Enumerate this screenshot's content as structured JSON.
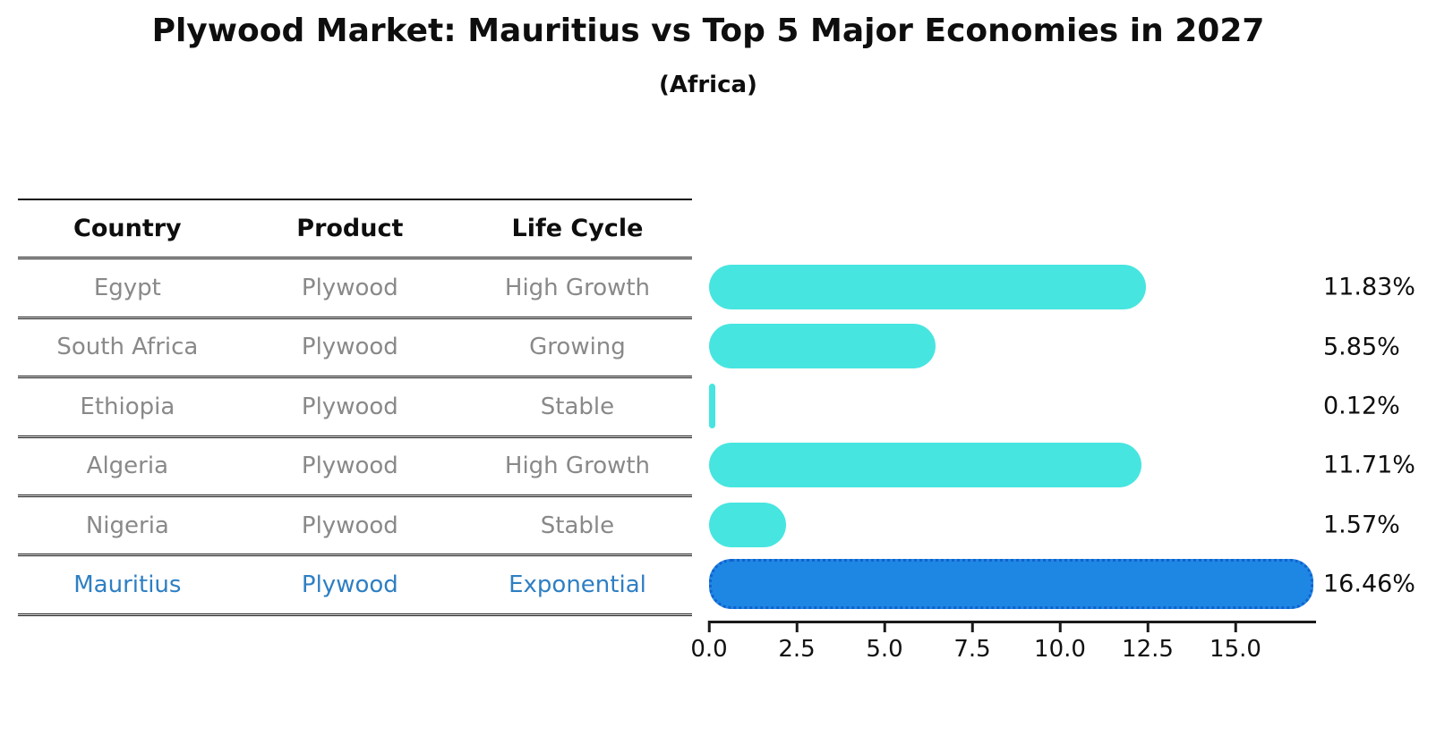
{
  "title": "Plywood Market: Mauritius vs Top 5 Major Economies in 2027",
  "subtitle": "(Africa)",
  "table": {
    "headers": [
      "Country",
      "Product",
      "Life Cycle"
    ],
    "rows": [
      {
        "country": "Egypt",
        "product": "Plywood",
        "life_cycle": "High Growth",
        "highlight": false
      },
      {
        "country": "South Africa",
        "product": "Plywood",
        "life_cycle": "Growing",
        "highlight": false
      },
      {
        "country": "Ethiopia",
        "product": "Plywood",
        "life_cycle": "Stable",
        "highlight": false
      },
      {
        "country": "Algeria",
        "product": "Plywood",
        "life_cycle": "High Growth",
        "highlight": false
      },
      {
        "country": "Nigeria",
        "product": "Plywood",
        "life_cycle": "Stable",
        "highlight": false
      },
      {
        "country": "Mauritius",
        "product": "Plywood",
        "life_cycle": "Exponential",
        "highlight": true
      }
    ]
  },
  "chart_data": {
    "type": "bar",
    "orientation": "horizontal",
    "title": "Plywood Market: Mauritius vs Top 5 Major Economies in 2027",
    "subtitle": "(Africa)",
    "categories": [
      "Egypt",
      "South Africa",
      "Ethiopia",
      "Algeria",
      "Nigeria",
      "Mauritius"
    ],
    "values": [
      11.83,
      5.85,
      0.12,
      11.71,
      1.57,
      16.46
    ],
    "value_labels": [
      "11.83%",
      "5.85%",
      "0.12%",
      "11.71%",
      "1.57%",
      "16.46%"
    ],
    "x_tick_labels": [
      "0.0",
      "2.5",
      "5.0",
      "7.5",
      "10.0",
      "12.5",
      "15.0"
    ],
    "x_tick_values": [
      0,
      2.5,
      5,
      7.5,
      10,
      12.5,
      15
    ],
    "xlim": [
      0,
      17.3
    ],
    "grid": false,
    "legend": false,
    "highlight_index": 5,
    "bar_color": "#47e5e0",
    "highlight_color": "#1e87e4",
    "highlight_border_color": "#1261cf",
    "text_gray": "#898989",
    "highlight_text_color": "#2e7fc3"
  }
}
